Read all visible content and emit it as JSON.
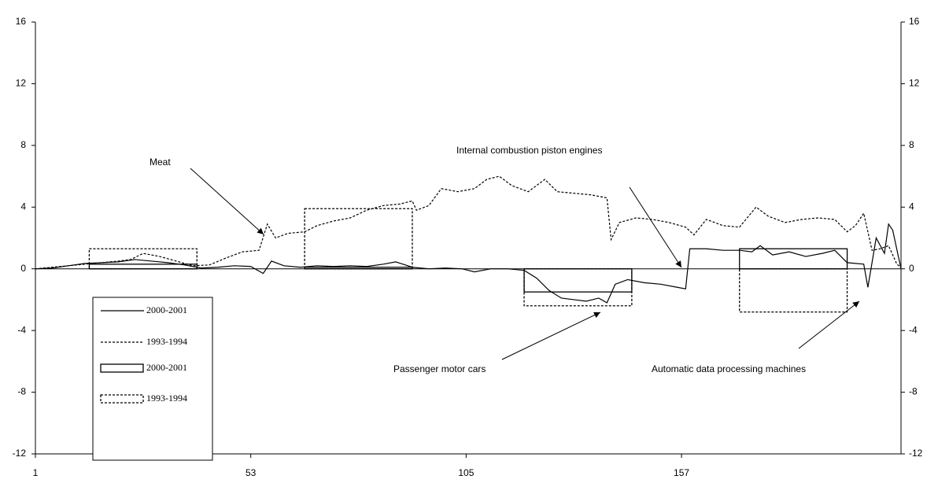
{
  "chart_data": {
    "type": "line",
    "xlim": [
      1,
      210
    ],
    "xticks": [
      1,
      53,
      105,
      157
    ],
    "ylim": [
      -12,
      16
    ],
    "yticks": [
      -12,
      -8,
      -4,
      0,
      4,
      8,
      12,
      16
    ],
    "y2lim": [
      -12,
      16
    ],
    "y2ticks": [
      -12,
      -8,
      -4,
      0,
      4,
      8,
      12,
      16
    ],
    "annotations": [
      "Meat",
      "Internal combustion piston engines",
      "Passenger motor cars",
      "Automatic data processing machines"
    ],
    "series": [
      {
        "name": "2000-2001",
        "style": "solid",
        "color": "#000000",
        "x": [
          1,
          5,
          9,
          13,
          17,
          21,
          25,
          29,
          33,
          37,
          41,
          45,
          49,
          53,
          56,
          58,
          61,
          65,
          69,
          73,
          77,
          81,
          85,
          88,
          92,
          96,
          100,
          104,
          107,
          111,
          115,
          119,
          122,
          125,
          128,
          131,
          134,
          137,
          139,
          141,
          144,
          148,
          152,
          156,
          158,
          159,
          163,
          167,
          171,
          174,
          176,
          179,
          183,
          187,
          191,
          194,
          197,
          201,
          202,
          204,
          206,
          207,
          208,
          210
        ],
        "values": [
          0,
          0.05,
          0.2,
          0.35,
          0.4,
          0.45,
          0.6,
          0.5,
          0.4,
          0.25,
          0.05,
          0.1,
          0.2,
          0.15,
          -0.3,
          0.5,
          0.2,
          0.1,
          0.2,
          0.15,
          0.2,
          0.15,
          0.3,
          0.45,
          0.1,
          0,
          0.05,
          0,
          -0.2,
          0,
          0,
          -0.1,
          -0.6,
          -1.4,
          -1.9,
          -2.0,
          -2.1,
          -1.9,
          -2.2,
          -1.0,
          -0.7,
          -0.9,
          -1.0,
          -1.2,
          -1.3,
          1.3,
          1.3,
          1.2,
          1.2,
          1.1,
          1.5,
          0.9,
          1.1,
          0.8,
          1.0,
          1.2,
          0.4,
          0.3,
          -1.2,
          2.0,
          1.0,
          2.9,
          2.5,
          0
        ]
      },
      {
        "name": "1993-1994",
        "style": "dashed",
        "color": "#000000",
        "x": [
          1,
          5,
          9,
          13,
          17,
          21,
          24,
          27,
          31,
          35,
          39,
          43,
          47,
          51,
          55,
          57,
          59,
          62,
          66,
          69,
          73,
          77,
          81,
          85,
          89,
          92,
          93,
          96,
          99,
          103,
          107,
          110,
          113,
          116,
          120,
          124,
          127,
          131,
          135,
          139,
          140,
          142,
          146,
          150,
          154,
          158,
          160,
          163,
          167,
          171,
          175,
          178,
          182,
          186,
          190,
          194,
          197,
          199,
          201,
          203,
          205,
          207,
          209,
          210
        ],
        "values": [
          0,
          0.1,
          0.2,
          0.3,
          0.4,
          0.5,
          0.6,
          1.0,
          0.8,
          0.5,
          0.2,
          0.25,
          0.7,
          1.1,
          1.2,
          2.9,
          2.0,
          2.3,
          2.4,
          2.8,
          3.1,
          3.3,
          3.8,
          4.1,
          4.2,
          4.4,
          3.8,
          4.1,
          5.2,
          5.0,
          5.2,
          5.8,
          6.0,
          5.4,
          5.0,
          5.8,
          5.0,
          4.9,
          4.8,
          4.6,
          1.9,
          3.0,
          3.3,
          3.2,
          3.0,
          2.7,
          2.2,
          3.2,
          2.8,
          2.7,
          4.0,
          3.4,
          3.0,
          3.2,
          3.3,
          3.2,
          2.4,
          2.8,
          3.6,
          1.2,
          1.3,
          1.5,
          0.3,
          0.1
        ]
      },
      {
        "name": "2000-2001",
        "style": "solid-box",
        "color": "#000000",
        "x_start": [
          14,
          66,
          119,
          171
        ],
        "x_end": [
          40,
          92,
          145,
          197
        ],
        "values": [
          0.3,
          0.1,
          -1.5,
          1.3
        ]
      },
      {
        "name": "1993-1994",
        "style": "dashed-box",
        "color": "#000000",
        "x_start": [
          14,
          66,
          119,
          171
        ],
        "x_end": [
          40,
          92,
          145,
          197
        ],
        "values": [
          1.3,
          3.9,
          -2.4,
          -2.8
        ]
      }
    ]
  }
}
